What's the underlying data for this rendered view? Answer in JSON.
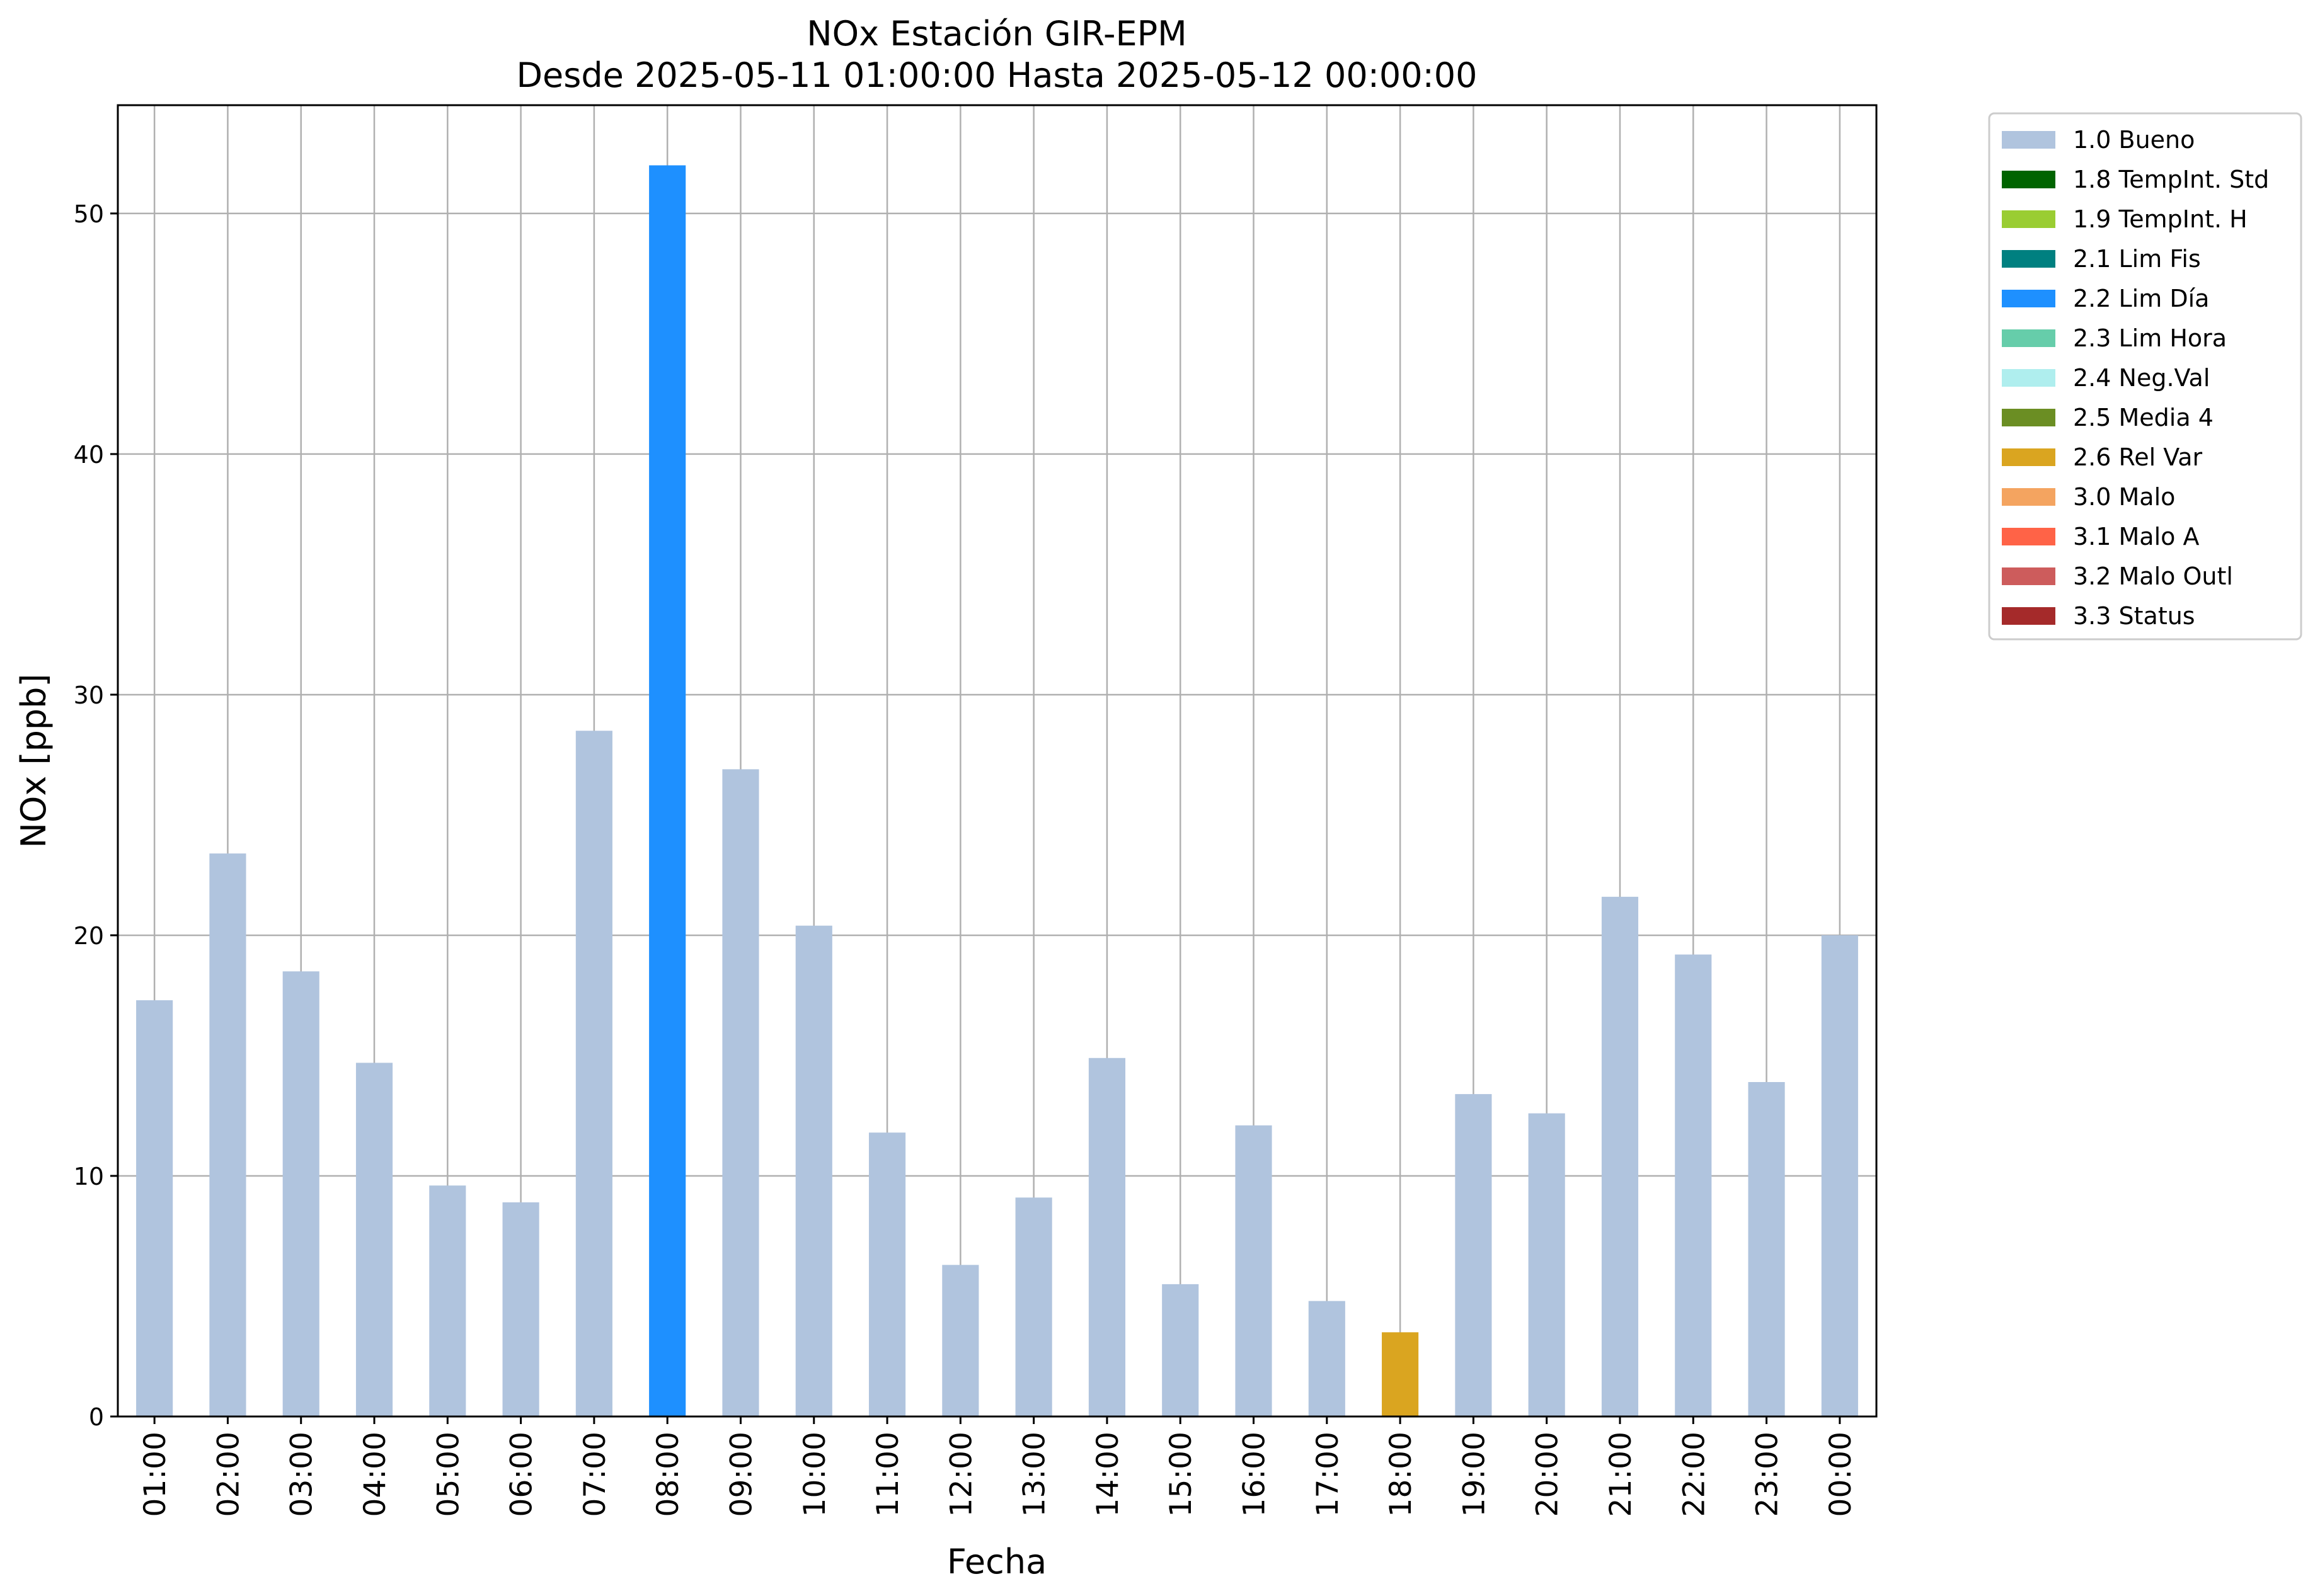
{
  "chart_data": {
    "type": "bar",
    "title_line1": "NOx Estación GIR-EPM",
    "title_line2": "Desde 2025-05-11 01:00:00 Hasta 2025-05-12 00:00:00",
    "xlabel": "Fecha",
    "ylabel": "NOx [ppb]",
    "ylim": [
      0,
      54.5
    ],
    "yticks": [
      0,
      10,
      20,
      30,
      40,
      50
    ],
    "grid": true,
    "legend_position": "outside-top-right",
    "categories": [
      "01:00",
      "02:00",
      "03:00",
      "04:00",
      "05:00",
      "06:00",
      "07:00",
      "08:00",
      "09:00",
      "10:00",
      "11:00",
      "12:00",
      "13:00",
      "14:00",
      "15:00",
      "16:00",
      "17:00",
      "18:00",
      "19:00",
      "20:00",
      "21:00",
      "22:00",
      "23:00",
      "00:00"
    ],
    "values": [
      17.3,
      23.4,
      18.5,
      14.7,
      9.6,
      8.9,
      28.5,
      52.0,
      26.9,
      20.4,
      11.8,
      6.3,
      9.1,
      14.9,
      5.5,
      12.1,
      4.8,
      3.5,
      13.4,
      12.6,
      21.6,
      19.2,
      13.9,
      20.0
    ],
    "flags": [
      "1.0 Bueno",
      "1.0 Bueno",
      "1.0 Bueno",
      "1.0 Bueno",
      "1.0 Bueno",
      "1.0 Bueno",
      "1.0 Bueno",
      "2.2 Lim Día",
      "1.0 Bueno",
      "1.0 Bueno",
      "1.0 Bueno",
      "1.0 Bueno",
      "1.0 Bueno",
      "1.0 Bueno",
      "1.0 Bueno",
      "1.0 Bueno",
      "1.0 Bueno",
      "2.6 Rel Var",
      "1.0 Bueno",
      "1.0 Bueno",
      "1.0 Bueno",
      "1.0 Bueno",
      "1.0 Bueno",
      "1.0 Bueno"
    ],
    "legend": [
      {
        "label": "1.0 Bueno",
        "color": "#b0c4de"
      },
      {
        "label": "1.8 TempInt. Std",
        "color": "#006400"
      },
      {
        "label": "1.9 TempInt. H",
        "color": "#9acd32"
      },
      {
        "label": "2.1 Lim Fis",
        "color": "#008080"
      },
      {
        "label": "2.2 Lim Día",
        "color": "#1e90ff"
      },
      {
        "label": "2.3 Lim Hora",
        "color": "#66cdaa"
      },
      {
        "label": "2.4 Neg.Val",
        "color": "#afeeee"
      },
      {
        "label": "2.5 Media 4",
        "color": "#6b8e23"
      },
      {
        "label": "2.6 Rel Var",
        "color": "#daa520"
      },
      {
        "label": "3.0 Malo",
        "color": "#f4a460"
      },
      {
        "label": "3.1 Malo A",
        "color": "#ff6347"
      },
      {
        "label": "3.2 Malo Outl",
        "color": "#cd5c5c"
      },
      {
        "label": "3.3 Status",
        "color": "#a52a2a"
      }
    ]
  }
}
